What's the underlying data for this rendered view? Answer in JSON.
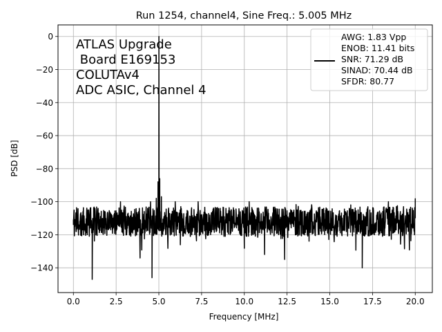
{
  "chart_data": {
    "type": "line",
    "title": "Run 1254, channel4, Sine Freq.: 5.005 MHz",
    "xlabel": "Frequency [MHz]",
    "ylabel": "PSD [dB]",
    "xlim": [
      -0.9,
      21.0
    ],
    "ylim": [
      -155,
      7
    ],
    "xticks": [
      0.0,
      2.5,
      5.0,
      7.5,
      10.0,
      12.5,
      15.0,
      17.5,
      20.0
    ],
    "xtick_labels": [
      "0.0",
      "2.5",
      "5.0",
      "7.5",
      "10.0",
      "12.5",
      "15.0",
      "17.5",
      "20.0"
    ],
    "yticks": [
      0,
      -20,
      -40,
      -60,
      -80,
      -100,
      -120,
      -140
    ],
    "ytick_labels": [
      "0",
      "−20",
      "−40",
      "−60",
      "−80",
      "−100",
      "−120",
      "−140"
    ],
    "grid": true,
    "line_color": "#000000",
    "annotation": [
      "ATLAS Upgrade",
      " Board E169153",
      "COLUTAv4",
      "ADC ASIC, Channel 4"
    ],
    "legend": {
      "position": "top-right",
      "lines": [
        "AWG: 1.83 Vpp",
        "ENOB: 11.41 bits",
        "SNR: 71.29 dB",
        "SINAD: 70.44 dB",
        "SFDR: 80.77"
      ]
    },
    "series": [
      {
        "noise_floor_db": -112,
        "noise_range_db": [
          -147,
          -100
        ],
        "x": [
          0.0,
          1.1,
          4.6,
          4.85,
          4.95,
          5.005,
          5.05,
          5.15,
          5.4,
          10.0,
          16.9,
          20.0
        ],
        "y": [
          -111,
          -147,
          -146,
          -98,
          -88,
          0,
          -86,
          -97,
          -113,
          -112,
          -140,
          -98
        ]
      }
    ]
  }
}
